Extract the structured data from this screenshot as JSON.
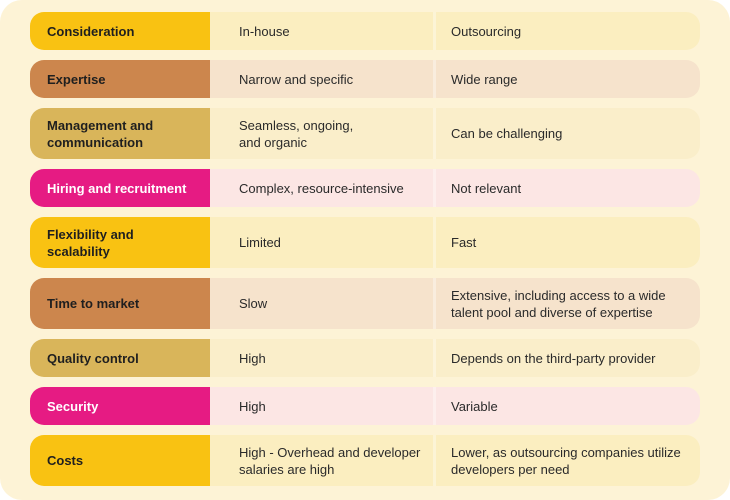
{
  "colors": {
    "yellow": "#f9c212",
    "brown": "#cc864d",
    "gold": "#d9b55a",
    "pink": "#e61b83",
    "card_bg": "#fdf3d6"
  },
  "rows": [
    {
      "label": "Consideration",
      "inhouse": "In-house",
      "outsourcing": "Outsourcing"
    },
    {
      "label": "Expertise",
      "inhouse": "Narrow and specific",
      "outsourcing": "Wide range"
    },
    {
      "label": "Management and communication",
      "inhouse": "Seamless, ongoing,\nand organic",
      "outsourcing": "Can be challenging"
    },
    {
      "label": "Hiring and recruitment",
      "inhouse": "Complex, resource-intensive",
      "outsourcing": "Not relevant"
    },
    {
      "label": "Flexibility and scalability",
      "inhouse": "Limited",
      "outsourcing": "Fast"
    },
    {
      "label": "Time to market",
      "inhouse": "Slow",
      "outsourcing": "Extensive, including access to a wide talent pool and diverse of expertise"
    },
    {
      "label": "Quality control",
      "inhouse": "High",
      "outsourcing": "Depends on the third-party provider"
    },
    {
      "label": "Security",
      "inhouse": "High",
      "outsourcing": "Variable"
    },
    {
      "label": "Costs",
      "inhouse": "High - Overhead and developer salaries are high",
      "outsourcing": "Lower, as outsourcing companies utilize developers per need"
    }
  ]
}
